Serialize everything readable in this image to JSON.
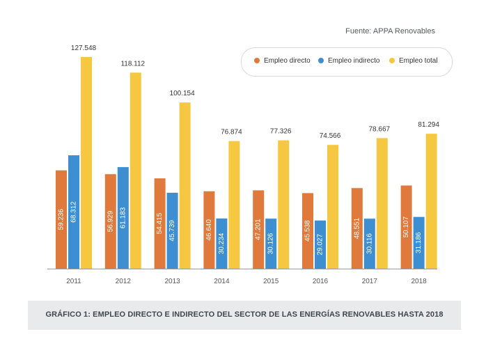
{
  "source": "Fuente: APPA Renovables",
  "caption": "GRÁFICO 1: EMPLEO DIRECTO E INDIRECTO DEL SECTOR DE LAS ENERGÍAS RENOVABLES HASTA 2018",
  "colors": {
    "directo": "#e07a3c",
    "indirecto": "#3d8fd1",
    "total": "#f6c842",
    "axis": "#999999",
    "label_dark": "#333333",
    "label_light": "#ffffff"
  },
  "chart_data": {
    "type": "bar",
    "categories": [
      "2011",
      "2012",
      "2013",
      "2014",
      "2015",
      "2016",
      "2017",
      "2018"
    ],
    "series": [
      {
        "name": "Empleo directo",
        "values": [
          59236,
          56929,
          54415,
          46640,
          47201,
          45538,
          48551,
          50107
        ],
        "labels": [
          "59.236",
          "56.929",
          "54.415",
          "46.640",
          "47.201",
          "45.538",
          "48.551",
          "50.107"
        ]
      },
      {
        "name": "Empleo indirecto",
        "values": [
          68312,
          61183,
          45739,
          30234,
          30126,
          29027,
          30116,
          31186
        ],
        "labels": [
          "68.312",
          "61.183",
          "45.739",
          "30.234",
          "30.126",
          "29.027",
          "30.116",
          "31.186"
        ]
      },
      {
        "name": "Empleo total",
        "values": [
          127548,
          118112,
          100154,
          76874,
          77326,
          74566,
          78667,
          81294
        ],
        "labels": [
          "127.548",
          "118.112",
          "100.154",
          "76.874",
          "77.326",
          "74.566",
          "78.667",
          "81.294"
        ]
      }
    ],
    "ylim": [
      0,
      130000
    ],
    "grid": false,
    "legend": "top-right",
    "title": "",
    "xlabel": "",
    "ylabel": ""
  }
}
